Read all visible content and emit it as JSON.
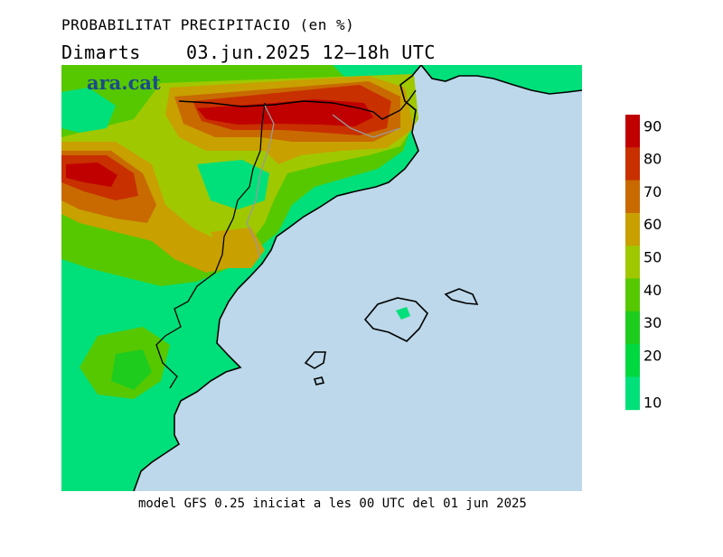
{
  "title": "PROBABILITAT PRECIPITACIO (en %)",
  "day": "Dimarts",
  "date": "03.jun.2025",
  "period": "12‒18h UTC",
  "brand": "ara.cat",
  "footer": "model GFS 0.25 iniciat a les 00 UTC del 01 jun 2025",
  "legend": {
    "labels": [
      "90",
      "80",
      "70",
      "60",
      "50",
      "40",
      "30",
      "20",
      "10"
    ],
    "colors": [
      "#c00000",
      "#c83000",
      "#c86a00",
      "#c8a000",
      "#a0c800",
      "#56c800",
      "#1ecc1e",
      "#00d840",
      "#00e07a"
    ]
  },
  "colors": {
    "sea": "#bcd8ea",
    "land_low": "#00e07a",
    "coast": "#000000",
    "border": "#9a9a9a"
  }
}
